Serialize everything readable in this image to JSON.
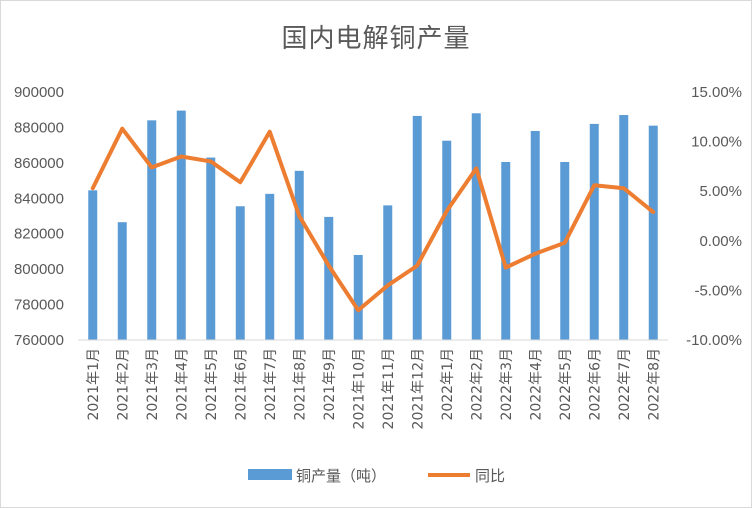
{
  "chart_data": {
    "type": "bar+line",
    "title": "国内电解铜产量",
    "categories": [
      "2021年1月",
      "2021年2月",
      "2021年3月",
      "2021年4月",
      "2021年5月",
      "2021年6月",
      "2021年7月",
      "2021年8月",
      "2021年9月",
      "2021年10月",
      "2021年11月",
      "2021年12月",
      "2022年1月",
      "2022年2月",
      "2022年3月",
      "2022年4月",
      "2022年5月",
      "2022年6月",
      "2022年7月",
      "2022年8月"
    ],
    "series": [
      {
        "name": "铜产量（吨）",
        "type": "bar",
        "axis": "left",
        "color": "#5b9bd5",
        "values": [
          844500,
          826500,
          884000,
          889500,
          863000,
          835500,
          842500,
          855500,
          829500,
          808000,
          836000,
          886500,
          872500,
          888000,
          860500,
          878000,
          860500,
          882000,
          887000,
          881000
        ]
      },
      {
        "name": "同比",
        "type": "line",
        "axis": "right",
        "color": "#ed7d31",
        "values": [
          5.3,
          11.3,
          7.4,
          8.5,
          8.0,
          5.9,
          11.0,
          2.5,
          -2.5,
          -7.0,
          -4.5,
          -2.5,
          3.0,
          7.3,
          -2.7,
          -1.3,
          -0.2,
          5.6,
          5.3,
          2.9
        ]
      }
    ],
    "y_left": {
      "min": 760000,
      "max": 900000,
      "step": 20000,
      "ticks": [
        "760000",
        "780000",
        "800000",
        "820000",
        "840000",
        "860000",
        "880000",
        "900000"
      ]
    },
    "y_right": {
      "min": -10,
      "max": 15,
      "step": 5,
      "ticks": [
        "-10.00%",
        "-5.00%",
        "0.00%",
        "5.00%",
        "10.00%",
        "15.00%"
      ]
    },
    "grid": false,
    "legend": "bottom"
  }
}
